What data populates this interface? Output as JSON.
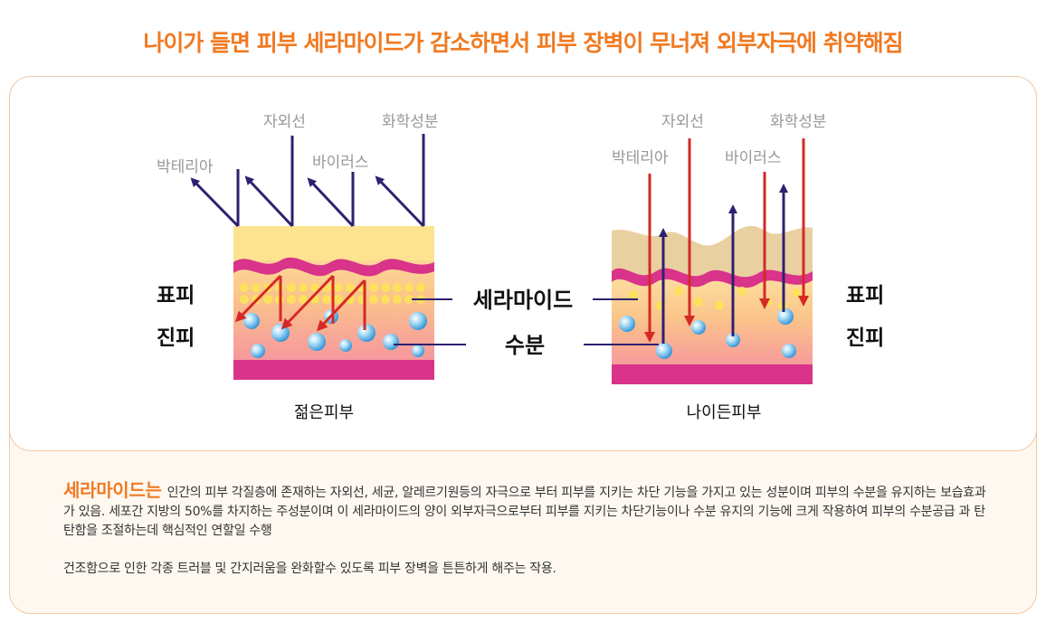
{
  "headline": "나이가 들면 피부 세라마이드가 감소하면서 피부 장벽이 무너져 외부자극에 취약해짐",
  "young": {
    "caption": "젊은피부",
    "threats": [
      "박테리아",
      "자외선",
      "바이러스",
      "화학성분"
    ]
  },
  "aged": {
    "caption": "나이든피부",
    "threats": [
      "박테리아",
      "자외선",
      "바이러스",
      "화학성분"
    ]
  },
  "layers": {
    "epidermis_left": "표피",
    "dermis_left": "진피",
    "epidermis_right": "표피",
    "dermis_right": "진피"
  },
  "center_labels": {
    "ceramide": "세라마이드",
    "moisture": "수분"
  },
  "description": {
    "term": "세라마이드는",
    "text1": "인간의 피부 각질층에 존재하는 자외선, 세균, 알레르기원등의 자극으로 부터 피부를 지키는 차단 기능을 가지고 있는 성분이며 피부의 수분을 유지하는 보습효과가 있음.  세포간 지방의 50%를 차지하는 주성분이며 이 세라마이드의 양이 외부자극으로부터 피부를 지키는 차단기능이나 수분 유지의 기능에 크게 작용하여 피부의 수분공급 과 탄탄함을 조절하는데 핵심적인 연할일 수행",
    "text2": "건조함으로 인한 각종 트러블 및 간지러움을 완화할수 있도록 피부 장벽을 튼튼하게 해주는 작용."
  },
  "colors": {
    "accent": "#f07a22",
    "arrow_blocked": "#2e2170",
    "arrow_penetrating": "#d42a26",
    "threat_text": "#999999",
    "skin_base": "#d9338a"
  }
}
